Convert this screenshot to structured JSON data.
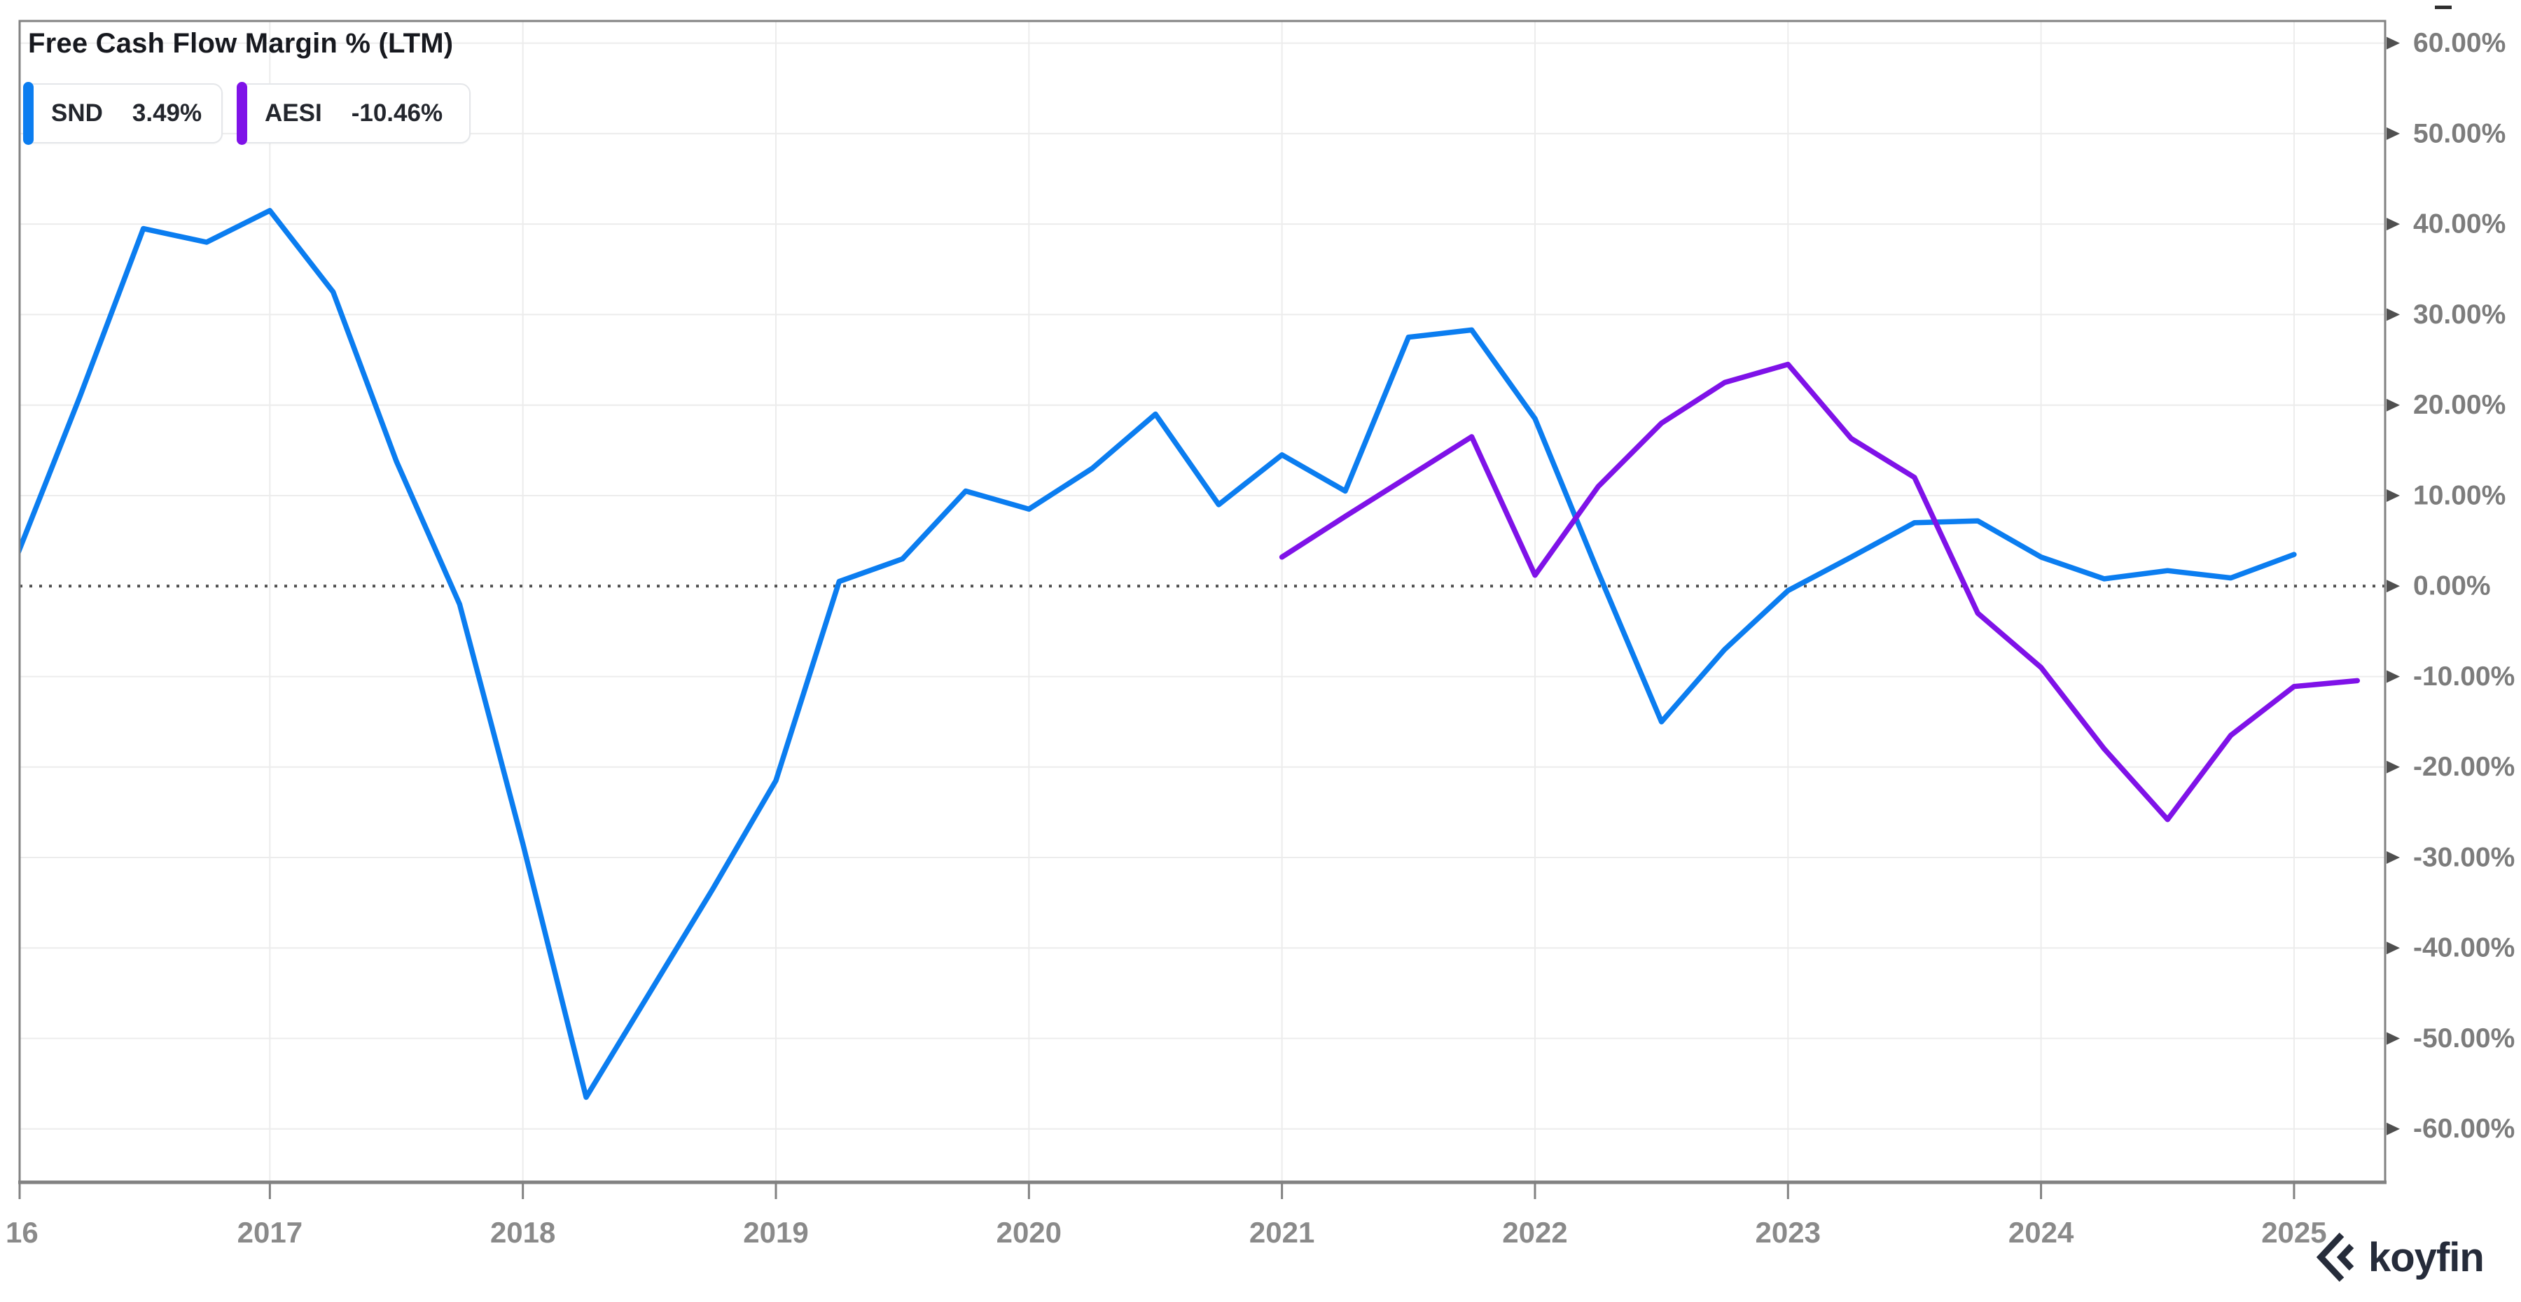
{
  "header": {
    "legend": [
      {
        "ticker": "SND",
        "value": "3.49%"
      },
      {
        "ticker": "AESI",
        "value": "-10.46%"
      }
    ]
  },
  "branding": {
    "logo_text": "koyfin"
  },
  "colors": {
    "snd_blue": "#0b7df0",
    "aesi_purple": "#7f12e8",
    "grid": "#ececec",
    "border": "#828282",
    "zero_line": "#4f4f4f",
    "y_label": "#7c7c7c",
    "x_label": "#8a8a8a",
    "arrow": "#4f4f4f"
  },
  "chart_data": {
    "type": "line",
    "title": "Free Cash Flow Margin % (LTM)",
    "xlabel": "",
    "ylabel": "Free Cash Flow Margin %",
    "xlim": [
      2016.011,
      2025.36
    ],
    "ylim": [
      -65.9,
      62.45
    ],
    "grid": true,
    "legend_position": "top-left",
    "x_ticks": [
      {
        "year": 2016,
        "label": "16"
      },
      {
        "year": 2017,
        "label": "2017"
      },
      {
        "year": 2018,
        "label": "2018"
      },
      {
        "year": 2019,
        "label": "2019"
      },
      {
        "year": 2020,
        "label": "2020"
      },
      {
        "year": 2021,
        "label": "2021"
      },
      {
        "year": 2022,
        "label": "2022"
      },
      {
        "year": 2023,
        "label": "2023"
      },
      {
        "year": 2024,
        "label": "2024"
      },
      {
        "year": 2025,
        "label": "2025"
      }
    ],
    "y_ticks": [
      60,
      50,
      40,
      30,
      20,
      10,
      0,
      -10,
      -20,
      -30,
      -40,
      -50,
      -60
    ],
    "y_tick_labels": [
      "60.00%",
      "50.00%",
      "40.00%",
      "30.00%",
      "20.00%",
      "10.00%",
      "0.00%",
      "-10.00%",
      "-20.00%",
      "-30.00%",
      "-40.00%",
      "-50.00%",
      "-60.00%"
    ],
    "zero_line_dotted": true,
    "series": [
      {
        "name": "SND",
        "color": "#0b7df0",
        "points": [
          [
            2016.0,
            3.3
          ],
          [
            2016.25,
            21.0
          ],
          [
            2016.5,
            39.5
          ],
          [
            2016.75,
            38.0
          ],
          [
            2017.0,
            41.5
          ],
          [
            2017.25,
            32.5
          ],
          [
            2017.5,
            13.8
          ],
          [
            2017.75,
            -2.0
          ],
          [
            2018.0,
            -28.5
          ],
          [
            2018.25,
            -56.5
          ],
          [
            2018.5,
            -45.0
          ],
          [
            2018.75,
            -33.5
          ],
          [
            2019.0,
            -21.5
          ],
          [
            2019.25,
            0.5
          ],
          [
            2019.5,
            3.0
          ],
          [
            2019.75,
            10.5
          ],
          [
            2020.0,
            8.5
          ],
          [
            2020.25,
            13.0
          ],
          [
            2020.5,
            19.0
          ],
          [
            2020.75,
            9.0
          ],
          [
            2021.0,
            14.5
          ],
          [
            2021.25,
            10.5
          ],
          [
            2021.5,
            27.5
          ],
          [
            2021.75,
            28.3
          ],
          [
            2022.0,
            18.5
          ],
          [
            2022.25,
            1.5
          ],
          [
            2022.5,
            -15.0
          ],
          [
            2022.75,
            -7.0
          ],
          [
            2023.0,
            -0.5
          ],
          [
            2023.25,
            3.2
          ],
          [
            2023.5,
            7.0
          ],
          [
            2023.75,
            7.2
          ],
          [
            2024.0,
            3.2
          ],
          [
            2024.25,
            0.8
          ],
          [
            2024.5,
            1.7
          ],
          [
            2024.75,
            0.9
          ],
          [
            2025.0,
            3.49
          ]
        ]
      },
      {
        "name": "AESI",
        "color": "#7f12e8",
        "points": [
          [
            2021.0,
            3.2
          ],
          [
            2021.25,
            7.7
          ],
          [
            2021.5,
            12.1
          ],
          [
            2021.75,
            16.5
          ],
          [
            2022.0,
            1.2
          ],
          [
            2022.25,
            11.0
          ],
          [
            2022.5,
            18.0
          ],
          [
            2022.75,
            22.5
          ],
          [
            2023.0,
            24.5
          ],
          [
            2023.25,
            16.3
          ],
          [
            2023.5,
            12.0
          ],
          [
            2023.75,
            -3.0
          ],
          [
            2024.0,
            -9.0
          ],
          [
            2024.25,
            -18.0
          ],
          [
            2024.5,
            -25.8
          ],
          [
            2024.75,
            -16.5
          ],
          [
            2025.0,
            -11.1
          ],
          [
            2025.25,
            -10.46
          ]
        ]
      }
    ]
  }
}
